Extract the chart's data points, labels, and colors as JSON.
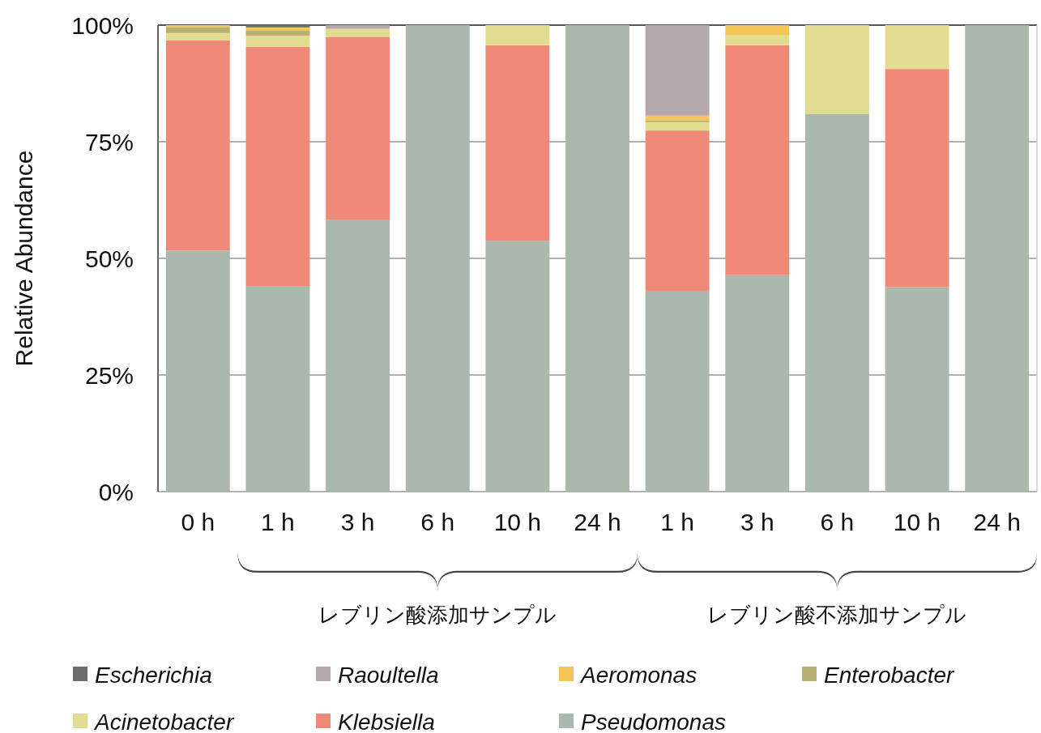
{
  "chart_data": {
    "type": "bar",
    "stacked": true,
    "ylabel": "Relative Abundance",
    "categories": [
      "0 h",
      "1 h",
      "3 h",
      "6 h",
      "10 h",
      "24 h",
      "1 h",
      "3 h",
      "6 h",
      "10 h",
      "24 h"
    ],
    "ylim": [
      0,
      100
    ],
    "yticks": [
      {
        "value": 0,
        "label": "0%"
      },
      {
        "value": 25,
        "label": "25%"
      },
      {
        "value": 50,
        "label": "50%"
      },
      {
        "value": 75,
        "label": "75%"
      },
      {
        "value": 100,
        "label": "100%"
      }
    ],
    "grid": "y",
    "legend": "bottom",
    "series": [
      {
        "name": "Pseudomonas",
        "color": "#aab8ad",
        "values": [
          51.7,
          44.1,
          58.2,
          100,
          53.8,
          100,
          42.9,
          46.4,
          80.9,
          43.8,
          100
        ]
      },
      {
        "name": "Klebsiella",
        "color": "#f08a78",
        "values": [
          45.0,
          51.3,
          39.3,
          null,
          41.9,
          null,
          34.5,
          49.3,
          null,
          46.8,
          null
        ]
      },
      {
        "name": "Acinetobacter",
        "color": "#e2dc90",
        "values": [
          1.6,
          2.3,
          1.7,
          null,
          4.3,
          null,
          1.8,
          2.2,
          19.1,
          9.4,
          null
        ]
      },
      {
        "name": "Enterobacter",
        "color": "#b8b070",
        "values": [
          1.3,
          1.2,
          null,
          null,
          null,
          null,
          0.4,
          null,
          null,
          null,
          null
        ]
      },
      {
        "name": "Aeromonas",
        "color": "#f5c55a",
        "values": [
          0.4,
          0.6,
          null,
          null,
          null,
          null,
          1.0,
          2.1,
          null,
          null,
          null
        ]
      },
      {
        "name": "Raoultella",
        "color": "#b3a8ac",
        "values": [
          null,
          null,
          0.8,
          null,
          null,
          null,
          19.4,
          null,
          null,
          null,
          null
        ]
      },
      {
        "name": "Escherichia",
        "color": "#6e6e6e",
        "values": [
          null,
          0.5,
          null,
          null,
          null,
          null,
          null,
          null,
          null,
          null,
          null
        ]
      }
    ],
    "annotations": [
      "レブリン酸添加サンプル",
      "レブリン酸不添加サンプル"
    ]
  }
}
